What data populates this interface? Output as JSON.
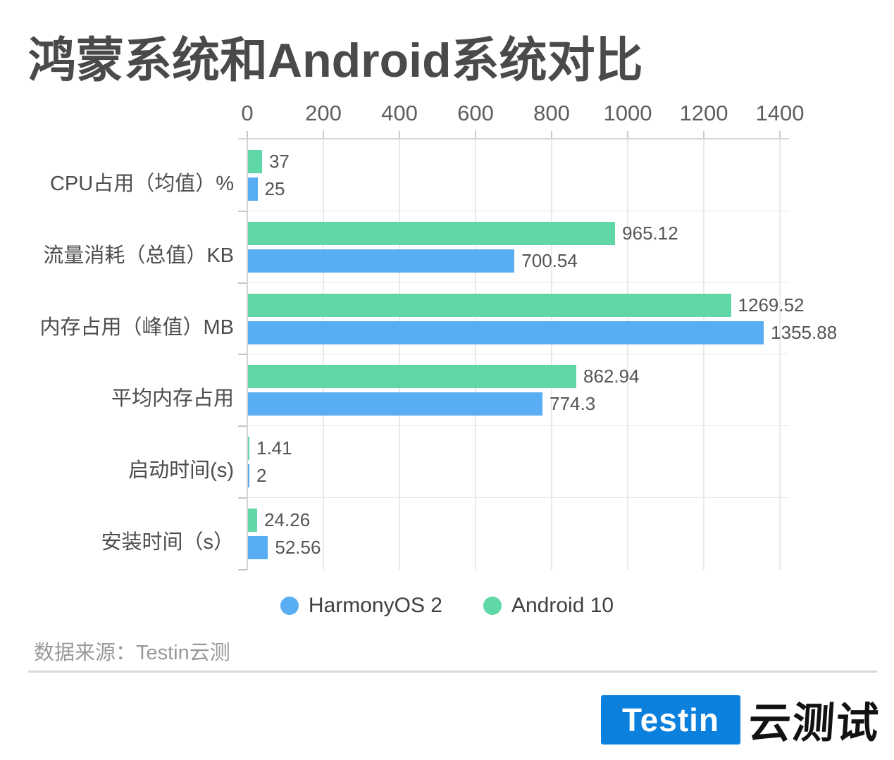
{
  "page": {
    "title": "鸿蒙系统和Android系统对比"
  },
  "chart_data": {
    "type": "bar",
    "orientation": "horizontal",
    "title": "鸿蒙系统和Android系统对比",
    "categories": [
      "CPU占用（均值）%",
      "流量消耗（总值）KB",
      "内存占用（峰值）MB",
      "平均内存占用",
      "启动时间(s)",
      "安装时间（s）"
    ],
    "series": [
      {
        "name": "HarmonyOS 2",
        "color": "#59adf2",
        "values": [
          25,
          700.54,
          1355.88,
          774.3,
          2,
          52.56
        ],
        "value_labels": [
          "25",
          "700.54",
          "1355.88",
          "774.3",
          "2",
          "52.56"
        ]
      },
      {
        "name": "Android 10",
        "color": "#5fd7a6",
        "values": [
          37,
          965.12,
          1269.52,
          862.94,
          1.41,
          24.26
        ],
        "value_labels": [
          "37",
          "965.12",
          "1269.52",
          "862.94",
          "1.41",
          "24.26"
        ]
      }
    ],
    "bar_order_top_to_bottom": [
      "Android 10",
      "HarmonyOS 2"
    ],
    "x_axis": {
      "position": "top",
      "ticks": [
        0,
        200,
        400,
        600,
        800,
        1000,
        1200,
        1400
      ],
      "min": 0,
      "max": 1400
    },
    "grid": true,
    "legend_position": "bottom",
    "colors": {
      "grid_line": "#e9e9e9",
      "axis_line": "#d4d4d4",
      "axis_tick": "#c8c8c8",
      "row_split_line": "#e6e6e6",
      "tick_label": "#5e5e5e",
      "category_label": "#4d4d4d",
      "value_label": "#555555",
      "title": "#4a4a4a"
    }
  },
  "footer": {
    "source": "数据来源：Testin云测",
    "logo_text": "Testin",
    "logo_suffix": "云测试",
    "logo_color": "#0b80dc"
  }
}
